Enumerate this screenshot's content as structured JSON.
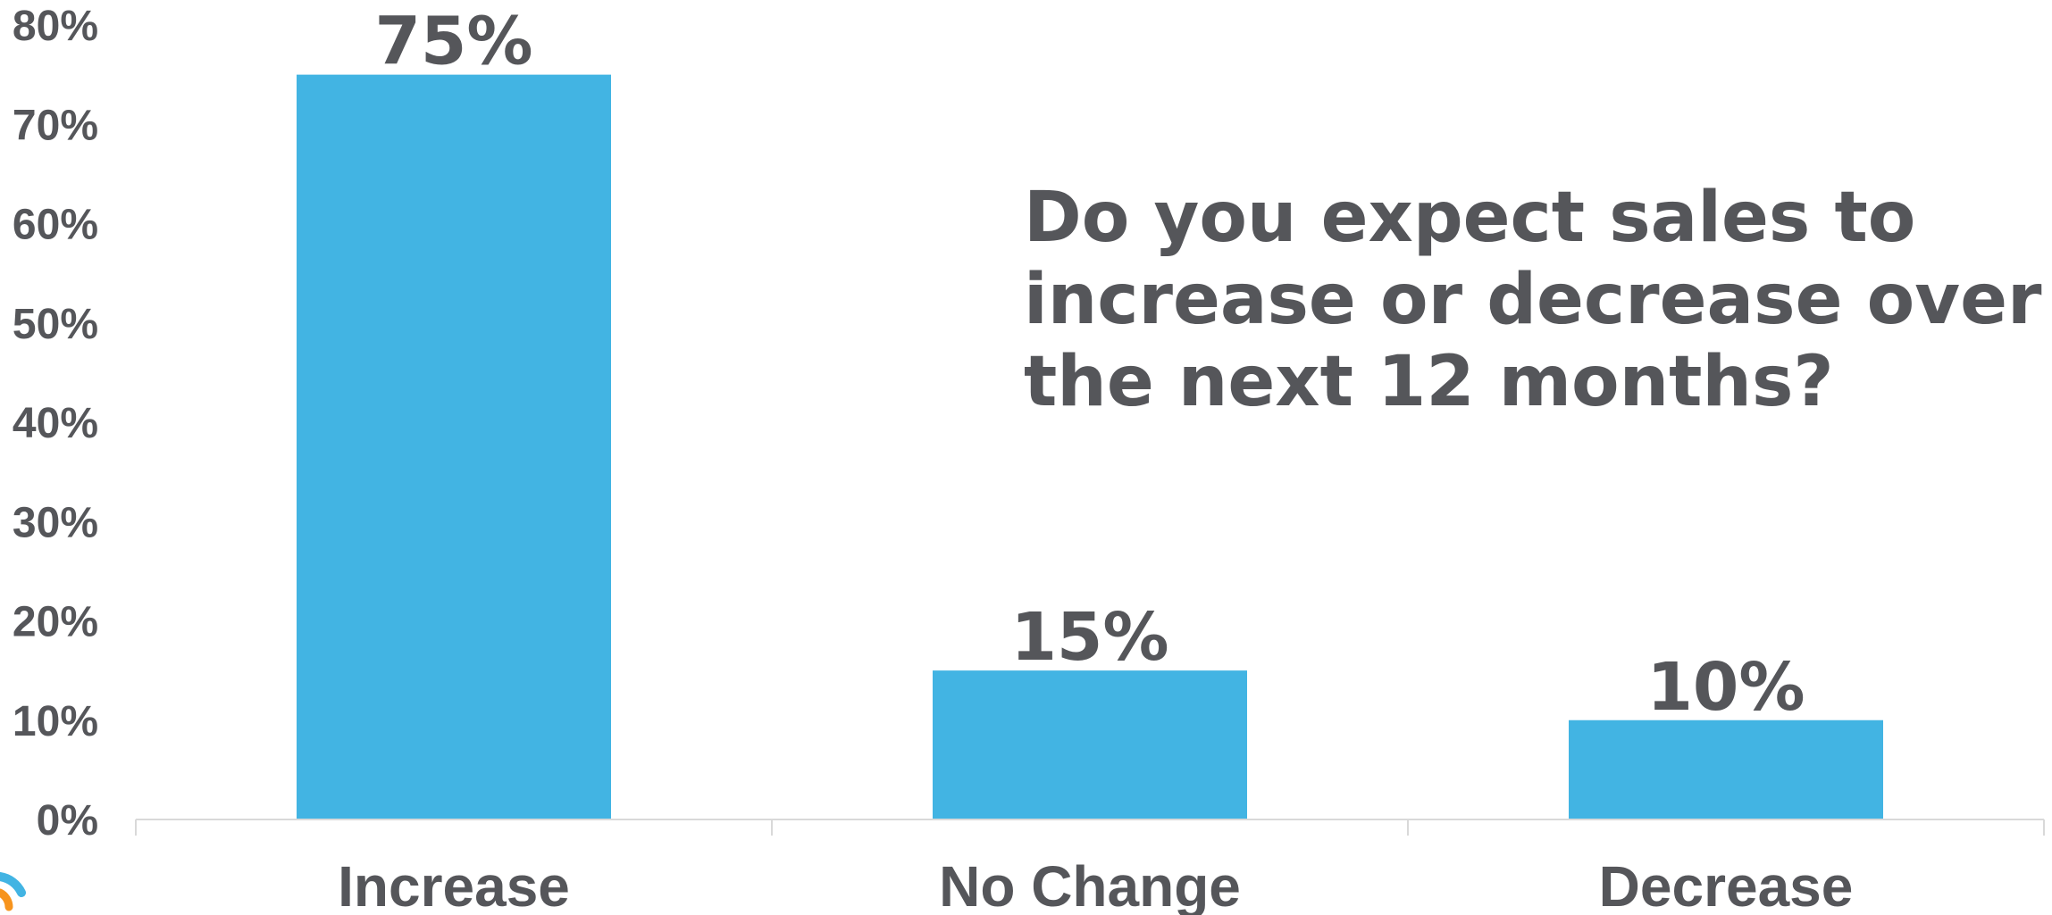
{
  "chart_data": {
    "type": "bar",
    "categories": [
      "Increase",
      "No Change",
      "Decrease"
    ],
    "values": [
      75,
      15,
      10
    ],
    "data_labels": [
      "75%",
      "15%",
      "10%"
    ],
    "ylim": [
      0,
      80
    ],
    "y_ticks": [
      "0%",
      "10%",
      "20%",
      "30%",
      "40%",
      "50%",
      "60%",
      "70%",
      "80%"
    ],
    "annotation": [
      "Do you expect sales to",
      "increase or decrease over",
      "the next 12 months?"
    ],
    "grid": false,
    "bar_color": "#42b4e3",
    "text_color": "#55565a",
    "axis_color": "#d9d9d9"
  },
  "logo_colors": [
    "#42b4e3",
    "#f7941d"
  ]
}
